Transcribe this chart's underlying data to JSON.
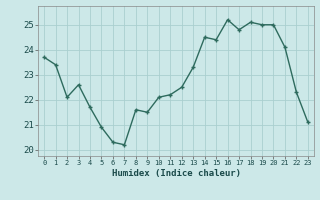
{
  "x": [
    0,
    1,
    2,
    3,
    4,
    5,
    6,
    7,
    8,
    9,
    10,
    11,
    12,
    13,
    14,
    15,
    16,
    17,
    18,
    19,
    20,
    21,
    22,
    23
  ],
  "y": [
    23.7,
    23.4,
    22.1,
    22.6,
    21.7,
    20.9,
    20.3,
    20.2,
    21.6,
    21.5,
    22.1,
    22.2,
    22.5,
    23.3,
    24.5,
    24.4,
    25.2,
    24.8,
    25.1,
    25.0,
    25.0,
    24.1,
    22.3,
    21.1
  ],
  "line_color": "#2e6b5e",
  "bg_color": "#cce8e8",
  "grid_color": "#aacfcf",
  "xlabel": "Humidex (Indice chaleur)",
  "xlim": [
    -0.5,
    23.5
  ],
  "ylim": [
    19.75,
    25.75
  ],
  "yticks": [
    20,
    21,
    22,
    23,
    24,
    25
  ],
  "xticks": [
    0,
    1,
    2,
    3,
    4,
    5,
    6,
    7,
    8,
    9,
    10,
    11,
    12,
    13,
    14,
    15,
    16,
    17,
    18,
    19,
    20,
    21,
    22,
    23
  ]
}
